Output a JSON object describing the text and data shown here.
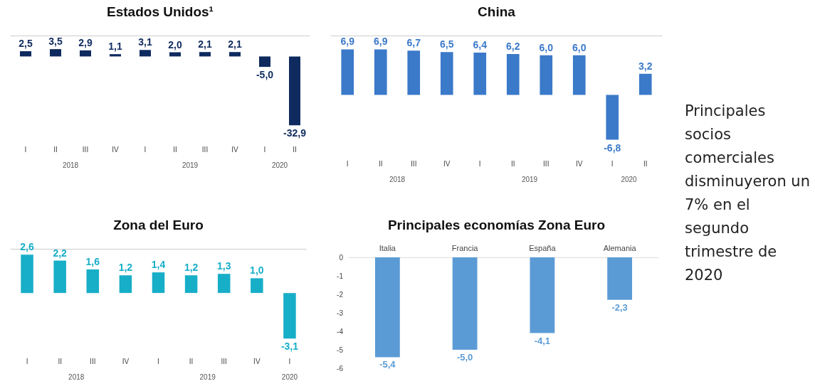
{
  "chart_data": [
    {
      "type": "bar",
      "title": "Estados Unidos¹",
      "categories": [
        "I",
        "II",
        "III",
        "IV",
        "I",
        "II",
        "III",
        "IV",
        "I",
        "II"
      ],
      "annotations": [
        "2018",
        "2019",
        "2020"
      ],
      "series": [
        {
          "color": "#0e2a5e",
          "values": [
            2.5,
            3.5,
            2.9,
            1.1,
            3.1,
            2.0,
            2.1,
            2.1,
            -5.0,
            -32.9
          ],
          "value_labels": [
            "2,5",
            "3,5",
            "2,9",
            "1,1",
            "3,1",
            "2,0",
            "2,1",
            "2,1",
            "-5,0",
            "-32,9"
          ]
        }
      ]
    },
    {
      "type": "bar",
      "title": "China",
      "categories": [
        "I",
        "II",
        "III",
        "IV",
        "I",
        "II",
        "III",
        "IV",
        "I",
        "II"
      ],
      "annotations": [
        "2018",
        "2019",
        "2020"
      ],
      "series": [
        {
          "color": "#3b79c9",
          "values": [
            6.9,
            6.9,
            6.7,
            6.5,
            6.4,
            6.2,
            6.0,
            6.0,
            -6.8,
            3.2
          ],
          "value_labels": [
            "6,9",
            "6,9",
            "6,7",
            "6,5",
            "6,4",
            "6,2",
            "6,0",
            "6,0",
            "-6,8",
            "3,2"
          ]
        }
      ]
    },
    {
      "type": "bar",
      "title": "Zona del Euro",
      "categories": [
        "I",
        "II",
        "III",
        "IV",
        "I",
        "II",
        "III",
        "IV",
        "I"
      ],
      "annotations": [
        "2018",
        "2019",
        "2020"
      ],
      "series": [
        {
          "color": "#17aec8",
          "values": [
            2.6,
            2.2,
            1.6,
            1.2,
            1.4,
            1.2,
            1.3,
            1.0,
            -3.1
          ],
          "value_labels": [
            "2,6",
            "2,2",
            "1,6",
            "1,2",
            "1,4",
            "1,2",
            "1,3",
            "1,0",
            "-3,1"
          ]
        }
      ]
    },
    {
      "type": "bar",
      "title": "Principales economías Zona Euro",
      "categories": [
        "Italia",
        "Francia",
        "España",
        "Alemania"
      ],
      "ylim": [
        -6,
        0
      ],
      "yticks": [
        0,
        -1,
        -2,
        -3,
        -4,
        -5,
        -6
      ],
      "series": [
        {
          "color": "#5b9bd5",
          "values": [
            -5.4,
            -5.0,
            -4.1,
            -2.3
          ],
          "value_labels": [
            "-5,4",
            "-5,0",
            "-4,1",
            "-2,3"
          ]
        }
      ]
    },
    {
      "type": "other",
      "annotations": [
        "Principales socios comerciales disminuyeron un 7% en el segundo trimestre de 2020"
      ]
    }
  ]
}
